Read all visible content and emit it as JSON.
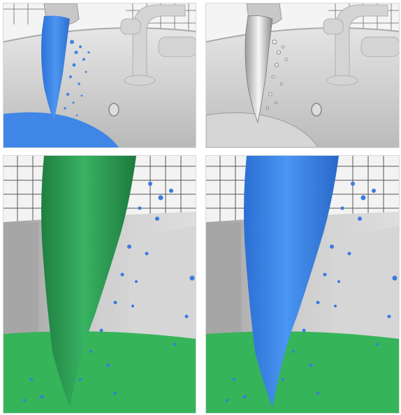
{
  "panels": [
    {
      "id": "top-left",
      "fluid_color": "#3f86e6",
      "surface": "opaque-blue"
    },
    {
      "id": "top-right",
      "fluid_color": "#e9e9e9",
      "surface": "transparent-refractive"
    },
    {
      "id": "bottom-left",
      "fluid_color": "#2e9e55",
      "pool_color": "#35b45a",
      "droplet_color": "#3a7be0",
      "surface": "green-stream-blue-droplets"
    },
    {
      "id": "bottom-right",
      "fluid_color": "#3f86e6",
      "pool_color": "#35b45a",
      "droplet_color": "#3a7be0",
      "surface": "blue-stream-green-pool"
    }
  ],
  "colors": {
    "tile_grid": "#5a5a5a",
    "tub": "#cfcfcf",
    "wall": "#f2f2f2",
    "faucet": "#d2d2d2"
  }
}
